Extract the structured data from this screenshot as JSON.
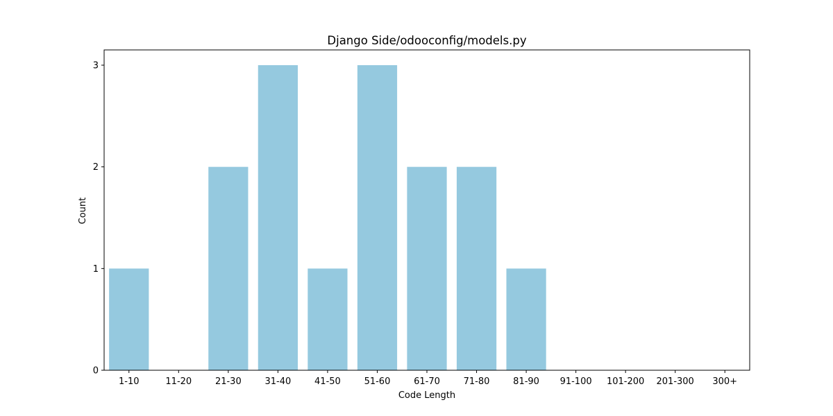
{
  "chart_data": {
    "type": "bar",
    "title": "Django Side/odooconfig/models.py",
    "xlabel": "Code Length",
    "ylabel": "Count",
    "categories": [
      "1-10",
      "11-20",
      "21-30",
      "31-40",
      "41-50",
      "51-60",
      "61-70",
      "71-80",
      "81-90",
      "91-100",
      "101-200",
      "201-300",
      "300+"
    ],
    "values": [
      1,
      0,
      2,
      3,
      1,
      3,
      2,
      2,
      1,
      0,
      0,
      0,
      0
    ],
    "ylim": [
      0,
      3.15
    ],
    "yticks": [
      0,
      1,
      2,
      3
    ],
    "grid": false,
    "legend": "none",
    "bar_color": "#95c9df"
  }
}
